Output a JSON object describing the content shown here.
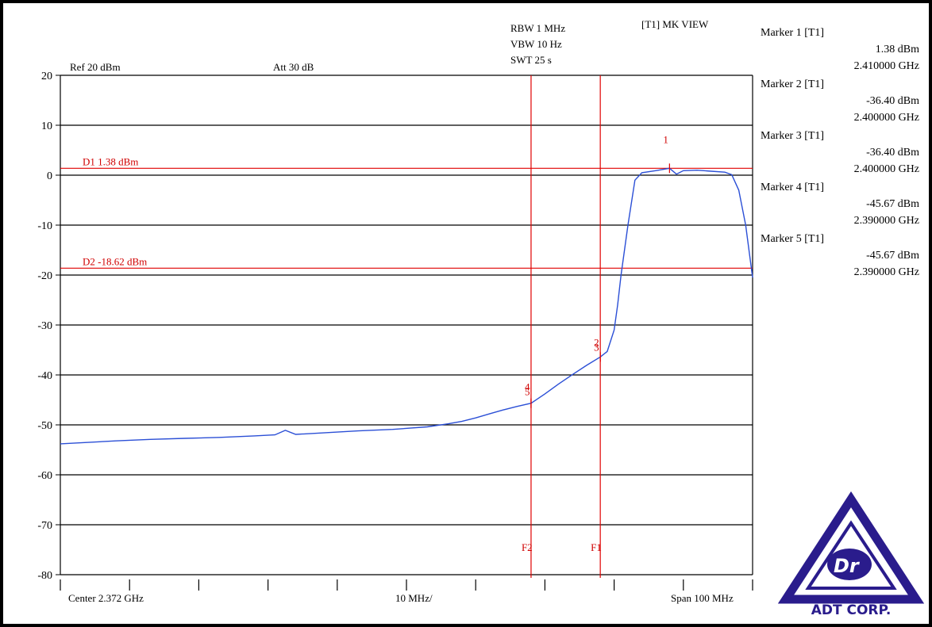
{
  "header": {
    "ref": "Ref 20 dBm",
    "att": "Att 30 dB",
    "rbw": "RBW 1 MHz",
    "vbw": "VBW 10 Hz",
    "swt": "SWT 25 s",
    "view": "[T1] MK VIEW"
  },
  "footer": {
    "center": "Center 2.372 GHz",
    "div": "10 MHz/",
    "span": "Span 100 MHz"
  },
  "markers_panel": [
    {
      "title": "Marker 1 [T1]",
      "level": "1.38 dBm",
      "freq": "2.410000 GHz"
    },
    {
      "title": "Marker 2 [T1]",
      "level": "-36.40 dBm",
      "freq": "2.400000 GHz"
    },
    {
      "title": "Marker 3 [T1]",
      "level": "-36.40 dBm",
      "freq": "2.400000 GHz"
    },
    {
      "title": "Marker 4 [T1]",
      "level": "-45.67 dBm",
      "freq": "2.390000 GHz"
    },
    {
      "title": "Marker 5 [T1]",
      "level": "-45.67 dBm",
      "freq": "2.390000 GHz"
    }
  ],
  "logo": {
    "text": "ADT CORP.",
    "colors": {
      "primary": "#2a1c8c"
    }
  },
  "colors": {
    "trace": "#2b4fd6",
    "lines": "#e00000",
    "grid": "#000000"
  },
  "chart_data": {
    "type": "line",
    "xunit": "GHz",
    "xlim": [
      2.322,
      2.422
    ],
    "ylim": [
      -80,
      20
    ],
    "yticks": [
      20,
      10,
      0,
      -10,
      -20,
      -30,
      -40,
      -50,
      -60,
      -70,
      -80
    ],
    "grid": true,
    "display_lines": [
      {
        "label": "D1 1.38 dBm",
        "y": 1.38
      },
      {
        "label": "D2 -18.62 dBm",
        "y": -18.62
      }
    ],
    "frequency_lines": [
      {
        "label": "F1",
        "x": 2.4
      },
      {
        "label": "F2",
        "x": 2.39
      }
    ],
    "markers": [
      {
        "label": "1",
        "x": 2.41,
        "y": 1.38
      },
      {
        "label": "2",
        "x": 2.4,
        "y": -36.4
      },
      {
        "label": "3",
        "x": 2.4,
        "y": -36.4
      },
      {
        "label": "4",
        "x": 2.39,
        "y": -45.67
      },
      {
        "label": "5",
        "x": 2.39,
        "y": -45.67
      }
    ],
    "series": [
      {
        "x": [
          2.322,
          2.33,
          2.335,
          2.34,
          2.345,
          2.35,
          2.353,
          2.3545,
          2.356,
          2.36,
          2.365,
          2.37,
          2.375,
          2.378,
          2.38,
          2.382,
          2.384,
          2.386,
          2.388,
          2.39,
          2.392,
          2.394,
          2.396,
          2.398,
          2.4,
          2.401,
          2.402,
          2.4025,
          2.403,
          2.404,
          2.405,
          2.406,
          2.408,
          2.41,
          2.411,
          2.412,
          2.414,
          2.416,
          2.418,
          2.419,
          2.42,
          2.421,
          2.422
        ],
        "y": [
          -53.8,
          -53.2,
          -52.9,
          -52.7,
          -52.5,
          -52.2,
          -52.0,
          -51.1,
          -51.9,
          -51.6,
          -51.2,
          -50.9,
          -50.4,
          -49.8,
          -49.3,
          -48.6,
          -47.8,
          -47.0,
          -46.3,
          -45.67,
          -43.8,
          -41.8,
          -39.9,
          -38.1,
          -36.4,
          -35.3,
          -31.0,
          -26.0,
          -20.0,
          -10.0,
          -1.0,
          0.5,
          0.9,
          1.38,
          0.2,
          0.9,
          1.0,
          0.8,
          0.6,
          0.1,
          -3.0,
          -10.0,
          -20.5
        ]
      }
    ]
  }
}
